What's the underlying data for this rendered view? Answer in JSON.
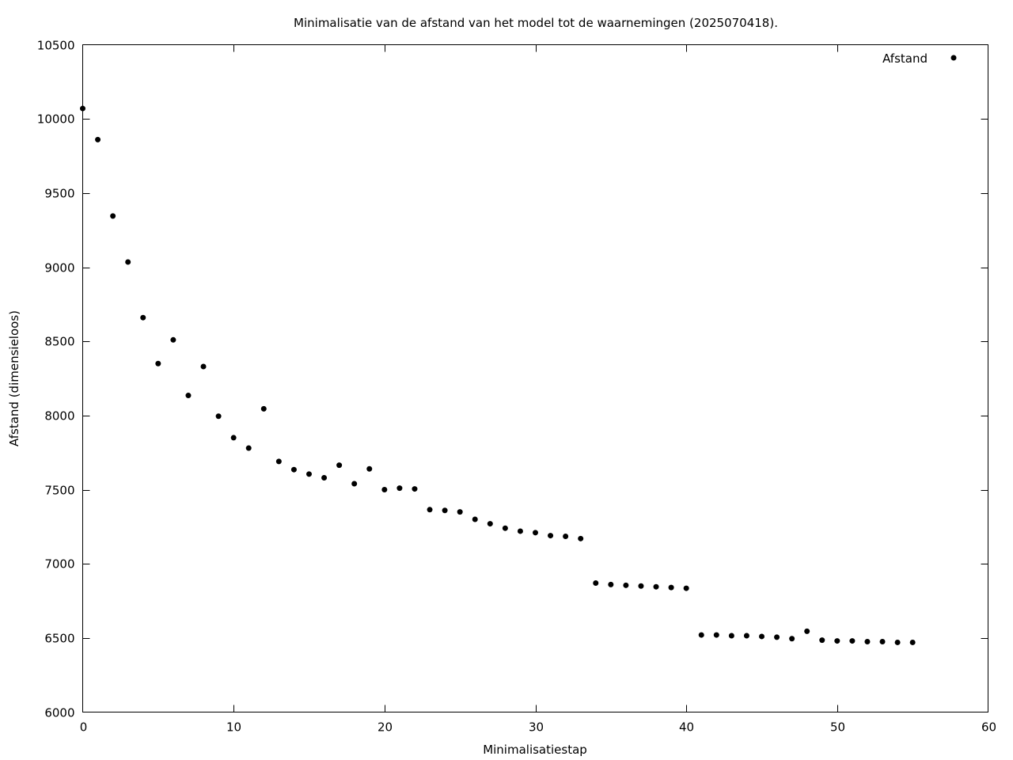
{
  "chart_data": {
    "type": "scatter",
    "title": "Minimalisatie van de afstand van het model tot de waarnemingen (2025070418).",
    "xlabel": "Minimalisatiestap",
    "ylabel": "Afstand (dimensieloos)",
    "xlim": [
      0,
      60
    ],
    "ylim": [
      6000,
      10500
    ],
    "xticks": [
      0,
      10,
      20,
      30,
      40,
      50,
      60
    ],
    "yticks": [
      6000,
      6500,
      7000,
      7500,
      8000,
      8500,
      9000,
      9500,
      10000,
      10500
    ],
    "grid": false,
    "legend_position": "top-right",
    "series": [
      {
        "name": "Afstand",
        "color": "#000000",
        "marker": "dot",
        "x": [
          0,
          1,
          2,
          3,
          4,
          5,
          6,
          7,
          8,
          9,
          10,
          11,
          12,
          13,
          14,
          15,
          16,
          17,
          18,
          19,
          20,
          21,
          22,
          23,
          24,
          25,
          26,
          27,
          28,
          29,
          30,
          31,
          32,
          33,
          34,
          35,
          36,
          37,
          38,
          39,
          40,
          41,
          42,
          43,
          44,
          45,
          46,
          47,
          48,
          49,
          50,
          51,
          52,
          53,
          54,
          55
        ],
        "y": [
          10070,
          9860,
          9345,
          9035,
          8660,
          8350,
          8510,
          8135,
          8330,
          7995,
          7850,
          7780,
          8045,
          7690,
          7635,
          7605,
          7580,
          7665,
          7540,
          7640,
          7500,
          7510,
          7505,
          7365,
          7360,
          7350,
          7300,
          7270,
          7240,
          7220,
          7210,
          7190,
          7185,
          7170,
          6870,
          6860,
          6855,
          6850,
          6845,
          6840,
          6835,
          6520,
          6520,
          6515,
          6515,
          6510,
          6505,
          6495,
          6545,
          6485,
          6480,
          6480,
          6475,
          6475,
          6470,
          6470
        ]
      }
    ]
  }
}
